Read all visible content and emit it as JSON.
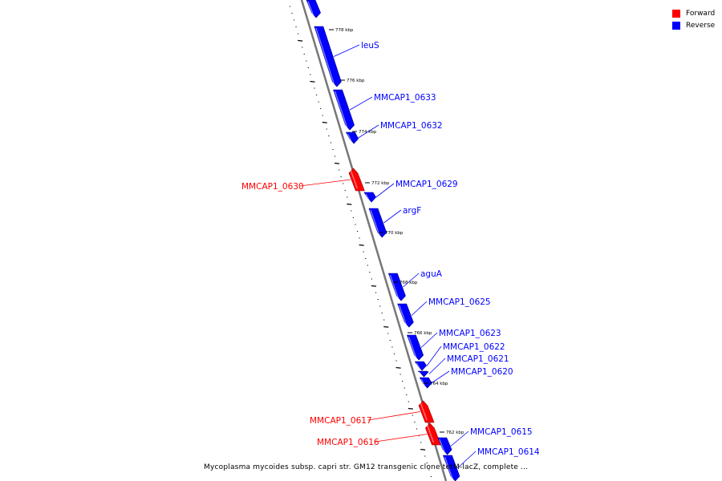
{
  "legend": {
    "forward": {
      "label": "Forward",
      "color": "#ff0000"
    },
    "reverse": {
      "label": "Reverse",
      "color": "#0000ff"
    }
  },
  "caption": "Mycoplasma mycoides subsp. capri str. GM12 transgenic clone tetM-lacZ, complete ...",
  "scale_labels": [
    "778 kbp",
    "776 kbp",
    "774 kbp",
    "772 kbp",
    "770 kbp",
    "768 kbp",
    "766 kbp",
    "764 kbp",
    "762 kbp"
  ],
  "genes": [
    {
      "id": "g-top",
      "label": "",
      "strand": "reverse"
    },
    {
      "id": "leuS",
      "label": "leuS",
      "strand": "reverse"
    },
    {
      "id": "MMCAP1_0633",
      "label": "MMCAP1_0633",
      "strand": "reverse"
    },
    {
      "id": "MMCAP1_0632",
      "label": "MMCAP1_0632",
      "strand": "reverse"
    },
    {
      "id": "MMCAP1_0630",
      "label": "MMCAP1_0630",
      "strand": "forward"
    },
    {
      "id": "MMCAP1_0629",
      "label": "MMCAP1_0629",
      "strand": "reverse"
    },
    {
      "id": "argF",
      "label": "argF",
      "strand": "reverse"
    },
    {
      "id": "aguA",
      "label": "aguA",
      "strand": "reverse"
    },
    {
      "id": "MMCAP1_0625",
      "label": "MMCAP1_0625",
      "strand": "reverse"
    },
    {
      "id": "MMCAP1_0623",
      "label": "MMCAP1_0623",
      "strand": "reverse"
    },
    {
      "id": "MMCAP1_0622",
      "label": "MMCAP1_0622",
      "strand": "reverse"
    },
    {
      "id": "MMCAP1_0621",
      "label": "MMCAP1_0621",
      "strand": "reverse"
    },
    {
      "id": "MMCAP1_0620",
      "label": "MMCAP1_0620",
      "strand": "reverse"
    },
    {
      "id": "MMCAP1_0617",
      "label": "MMCAP1_0617",
      "strand": "forward"
    },
    {
      "id": "MMCAP1_0616",
      "label": "MMCAP1_0616",
      "strand": "forward"
    },
    {
      "id": "MMCAP1_0615",
      "label": "MMCAP1_0615",
      "strand": "reverse"
    },
    {
      "id": "MMCAP1_0614",
      "label": "MMCAP1_0614",
      "strand": "reverse"
    }
  ]
}
